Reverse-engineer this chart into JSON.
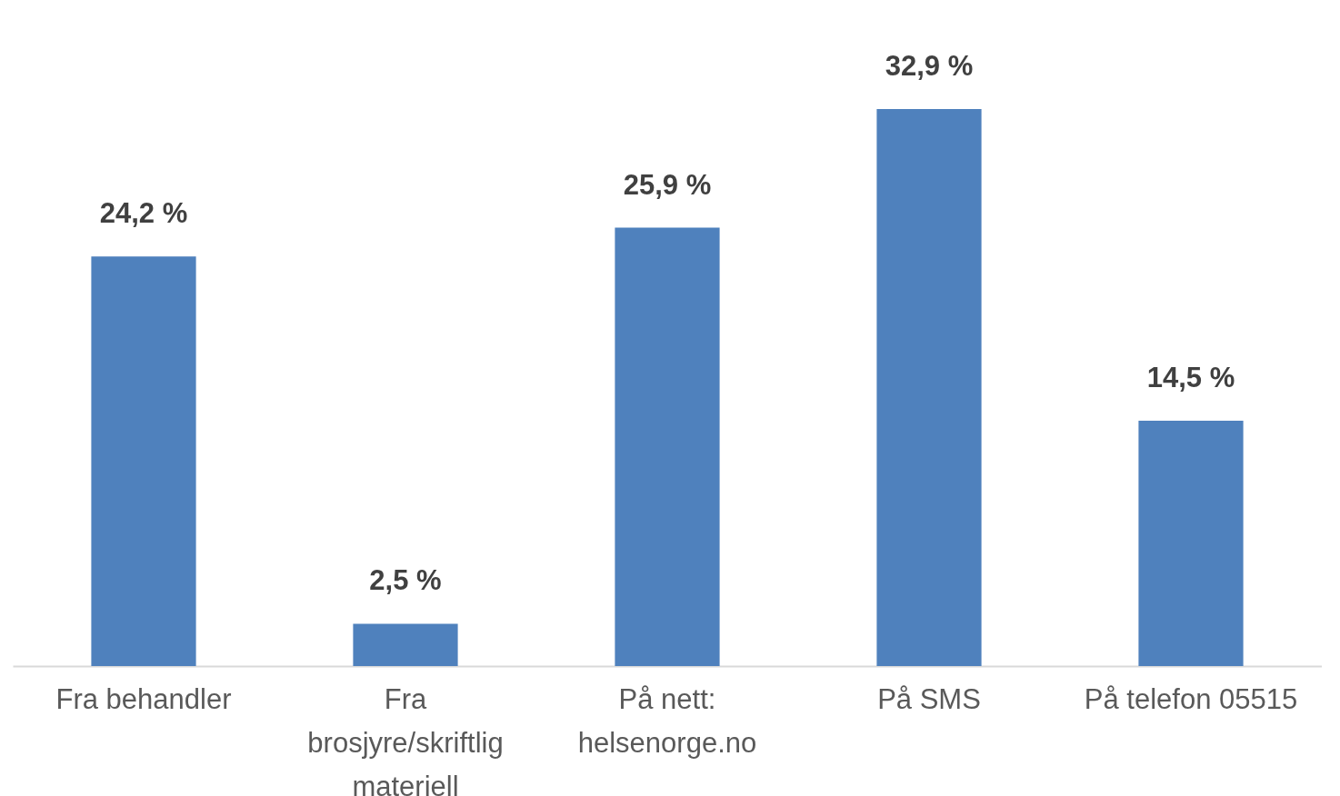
{
  "chart_data": {
    "type": "bar",
    "categories": [
      "Fra behandler",
      "Fra\nbrosjyre/skriftlig\nmateriell",
      "På nett:\nhelsenorge.no",
      "På SMS",
      "På telefon 05515"
    ],
    "values": [
      24.2,
      2.5,
      25.9,
      32.9,
      14.5
    ],
    "value_labels": [
      "24,2 %",
      "2,5 %",
      "25,9 %",
      "32,9 %",
      "14,5 %"
    ],
    "color": "#4f81bd"
  }
}
